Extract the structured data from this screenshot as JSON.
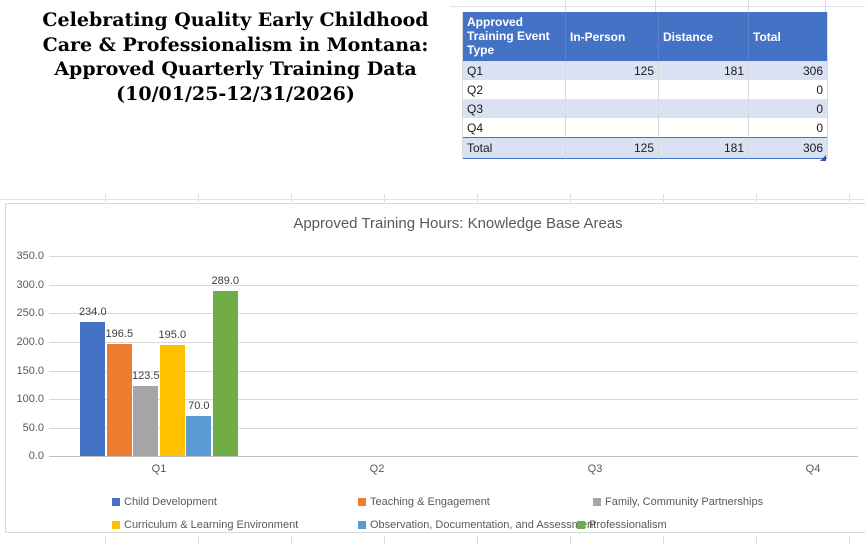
{
  "header": {
    "title_lines": [
      "Celebrating Quality Early Childhood",
      "Care & Professionalism in Montana:",
      "Approved Quarterly Training Data",
      "(10/01/25-12/31/2026)"
    ]
  },
  "table": {
    "headers": [
      "Approved Training Event Type",
      "In-Person",
      "Distance",
      "Total"
    ],
    "rows": [
      {
        "label": "Q1",
        "in_person": "125",
        "distance": "181",
        "total": "306"
      },
      {
        "label": "Q2",
        "in_person": "",
        "distance": "",
        "total": "0"
      },
      {
        "label": "Q3",
        "in_person": "",
        "distance": "",
        "total": "0"
      },
      {
        "label": "Q4",
        "in_person": "",
        "distance": "",
        "total": "0"
      },
      {
        "label": "Total",
        "in_person": "125",
        "distance": "181",
        "total": "306"
      }
    ],
    "header_bg": "#4472C4",
    "band_bg": "#D9E1F2"
  },
  "chart_data": {
    "type": "bar",
    "title": "Approved Training Hours: Knowledge Base Areas",
    "categories": [
      "Q1",
      "Q2",
      "Q3",
      "Q4"
    ],
    "series": [
      {
        "name": "Child Development",
        "color": "#4472C4",
        "values": [
          234.0,
          null,
          null,
          null
        ]
      },
      {
        "name": "Teaching & Engagement",
        "color": "#ED7D31",
        "values": [
          196.5,
          null,
          null,
          null
        ]
      },
      {
        "name": "Family, Community Partnerships",
        "color": "#A5A5A5",
        "values": [
          123.5,
          null,
          null,
          null
        ]
      },
      {
        "name": "Curriculum & Learning Environment",
        "color": "#FFC000",
        "values": [
          195.0,
          null,
          null,
          null
        ]
      },
      {
        "name": "Observation, Documentation, and Assessment",
        "color": "#5B9BD5",
        "values": [
          70.0,
          null,
          null,
          null
        ]
      },
      {
        "name": "Professionalism",
        "color": "#70AD47",
        "values": [
          289.0,
          null,
          null,
          null
        ]
      }
    ],
    "xlabel": "",
    "ylabel": "",
    "ylim": [
      0,
      350
    ],
    "ytick_step": 50,
    "tick_decimals": 1,
    "grid": true,
    "data_labels": true,
    "legend_position": "bottom"
  }
}
